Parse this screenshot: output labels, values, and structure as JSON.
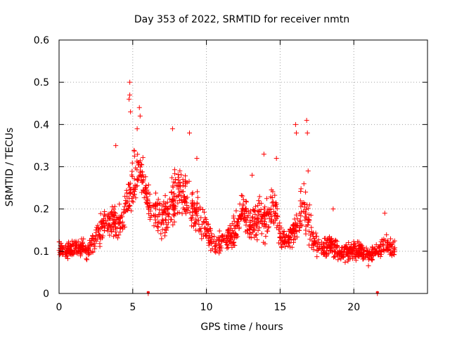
{
  "chart_data": {
    "type": "scatter",
    "title": "Day 353 of 2022, SRMTID for receiver nmtn",
    "xlabel": "GPS time / hours",
    "ylabel": "SRMTID / TECUs",
    "xlim": [
      0,
      25
    ],
    "ylim": [
      0,
      0.6
    ],
    "xticks": [
      0,
      5,
      10,
      15,
      20
    ],
    "yticks": [
      0,
      0.1,
      0.2,
      0.3,
      0.4,
      0.5,
      0.6
    ],
    "xtick_labels": [
      "0",
      "5",
      "10",
      "15",
      "20"
    ],
    "ytick_labels": [
      "0",
      "0.1",
      "0.2",
      "0.3",
      "0.4",
      "0.5",
      "0.6"
    ],
    "grid": true,
    "marker": "+",
    "color": "#ff0000",
    "series": [
      {
        "name": "nmtn",
        "envelope": {
          "hours": [
            0,
            0.5,
            1,
            1.5,
            2,
            2.5,
            3,
            3.5,
            4,
            4.5,
            4.8,
            5,
            5.5,
            6,
            6.5,
            7,
            7.5,
            8,
            8.5,
            9,
            9.5,
            10,
            10.5,
            11,
            11.5,
            12,
            12.5,
            13,
            13.5,
            14,
            14.5,
            15,
            15.5,
            16,
            16.5,
            17,
            17.5,
            18,
            18.5,
            19,
            19.5,
            20,
            20.5,
            21,
            21.5,
            22,
            22.5,
            22.8
          ],
          "typical": [
            0.11,
            0.1,
            0.11,
            0.11,
            0.1,
            0.14,
            0.16,
            0.17,
            0.16,
            0.2,
            0.24,
            0.26,
            0.3,
            0.22,
            0.2,
            0.18,
            0.2,
            0.24,
            0.23,
            0.2,
            0.18,
            0.15,
            0.11,
            0.12,
            0.13,
            0.15,
            0.2,
            0.16,
            0.18,
            0.17,
            0.2,
            0.14,
            0.12,
            0.15,
            0.2,
            0.16,
            0.11,
            0.11,
            0.12,
            0.1,
            0.1,
            0.1,
            0.1,
            0.09,
            0.1,
            0.11,
            0.11,
            0.1
          ],
          "spread": [
            0.03,
            0.03,
            0.03,
            0.03,
            0.03,
            0.04,
            0.05,
            0.05,
            0.06,
            0.07,
            0.09,
            0.1,
            0.08,
            0.06,
            0.06,
            0.06,
            0.08,
            0.09,
            0.08,
            0.07,
            0.06,
            0.05,
            0.03,
            0.04,
            0.04,
            0.05,
            0.07,
            0.06,
            0.07,
            0.06,
            0.07,
            0.05,
            0.04,
            0.06,
            0.09,
            0.08,
            0.04,
            0.04,
            0.04,
            0.03,
            0.03,
            0.03,
            0.03,
            0.03,
            0.03,
            0.04,
            0.03,
            0.03
          ]
        },
        "peaks": [
          {
            "x": 4.8,
            "y": 0.5
          },
          {
            "x": 4.8,
            "y": 0.47
          },
          {
            "x": 4.75,
            "y": 0.46
          },
          {
            "x": 4.85,
            "y": 0.43
          },
          {
            "x": 5.45,
            "y": 0.44
          },
          {
            "x": 5.5,
            "y": 0.42
          },
          {
            "x": 5.3,
            "y": 0.39
          },
          {
            "x": 3.85,
            "y": 0.35
          },
          {
            "x": 7.7,
            "y": 0.39
          },
          {
            "x": 8.85,
            "y": 0.38
          },
          {
            "x": 9.35,
            "y": 0.32
          },
          {
            "x": 13.1,
            "y": 0.28
          },
          {
            "x": 13.9,
            "y": 0.33
          },
          {
            "x": 14.75,
            "y": 0.32
          },
          {
            "x": 16.05,
            "y": 0.4
          },
          {
            "x": 16.1,
            "y": 0.38
          },
          {
            "x": 16.8,
            "y": 0.41
          },
          {
            "x": 16.85,
            "y": 0.38
          },
          {
            "x": 16.9,
            "y": 0.29
          },
          {
            "x": 18.6,
            "y": 0.2
          },
          {
            "x": 22.1,
            "y": 0.19
          }
        ],
        "zeros": [
          {
            "x": 6.05,
            "y": 0.0
          },
          {
            "x": 21.6,
            "y": 0.0
          }
        ]
      }
    ]
  }
}
